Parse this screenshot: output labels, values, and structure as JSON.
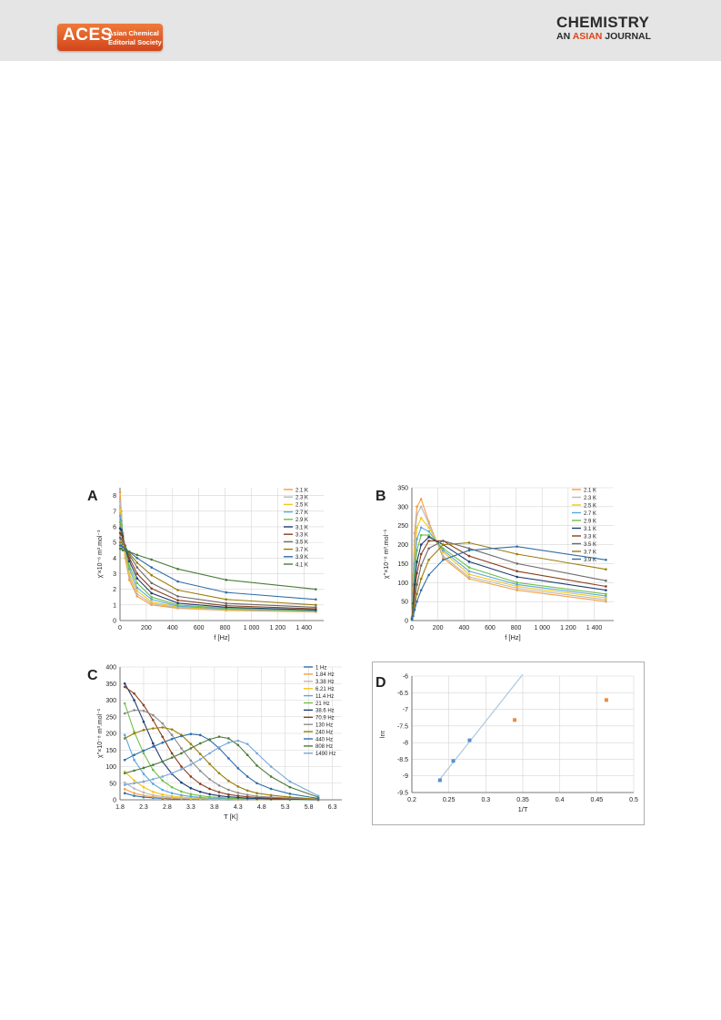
{
  "header": {
    "aces_logo": {
      "word": "ACES",
      "line1": "Asian Chemical",
      "line2": "Editorial Society"
    },
    "journal": {
      "line1": "CHEMISTRY",
      "line2_part1": "AN ",
      "line2_accent": "ASIAN",
      "line2_part2": " JOURNAL"
    },
    "colors": {
      "band": "#e5e5e5",
      "accent": "#d9471b"
    }
  },
  "chart_data": [
    {
      "panel": "A",
      "type": "line",
      "xlabel": "f [Hz]",
      "ylabel": "χ'×10⁻⁶ m³.mol⁻¹",
      "xlim": [
        0,
        1550
      ],
      "ylim": [
        0,
        8.5
      ],
      "xticks": [
        0,
        200,
        400,
        600,
        800,
        1000,
        1200,
        1400
      ],
      "xtick_labels": [
        "0",
        "200",
        "400",
        "600",
        "800",
        "1 000",
        "1 200",
        "1 400"
      ],
      "yticks": [
        0,
        1,
        2,
        3,
        4,
        5,
        6,
        7,
        8
      ],
      "legend": "top-right",
      "x": [
        1,
        10,
        21,
        39,
        71,
        130,
        240,
        440,
        808,
        1490
      ],
      "series": [
        {
          "name": "2.1 K",
          "color": "#f59e42",
          "values": [
            8.2,
            7.0,
            5.5,
            4.0,
            2.6,
            1.55,
            1.0,
            0.78,
            0.65,
            0.55
          ]
        },
        {
          "name": "2.3 K",
          "color": "#b9b9b9",
          "values": [
            7.6,
            6.8,
            5.6,
            4.2,
            2.8,
            1.7,
            1.1,
            0.82,
            0.68,
            0.58
          ]
        },
        {
          "name": "2.5 K",
          "color": "#f5c518",
          "values": [
            7.1,
            6.6,
            5.6,
            4.3,
            3.0,
            1.9,
            1.2,
            0.86,
            0.7,
            0.6
          ]
        },
        {
          "name": "2.7 K",
          "color": "#5aa7e0",
          "values": [
            6.7,
            6.4,
            5.6,
            4.5,
            3.3,
            2.1,
            1.35,
            0.92,
            0.74,
            0.62
          ]
        },
        {
          "name": "2.9 K",
          "color": "#6fbf4a",
          "values": [
            6.3,
            6.1,
            5.5,
            4.6,
            3.5,
            2.4,
            1.5,
            1.0,
            0.78,
            0.64
          ]
        },
        {
          "name": "3.1 K",
          "color": "#1f3b73",
          "values": [
            5.9,
            5.8,
            5.4,
            4.7,
            3.8,
            2.7,
            1.75,
            1.12,
            0.85,
            0.68
          ]
        },
        {
          "name": "3.3 K",
          "color": "#8a3f1d",
          "values": [
            5.6,
            5.5,
            5.3,
            4.8,
            4.0,
            3.0,
            2.05,
            1.3,
            0.95,
            0.75
          ]
        },
        {
          "name": "3.5 K",
          "color": "#6a6a6a",
          "values": [
            5.3,
            5.2,
            5.1,
            4.8,
            4.2,
            3.4,
            2.4,
            1.55,
            1.1,
            0.85
          ]
        },
        {
          "name": "3.7 K",
          "color": "#9a7d0a",
          "values": [
            5.0,
            5.0,
            4.9,
            4.7,
            4.3,
            3.7,
            2.9,
            1.95,
            1.35,
            1.0
          ]
        },
        {
          "name": "3.9 K",
          "color": "#2f6ea8",
          "values": [
            4.8,
            4.8,
            4.7,
            4.6,
            4.4,
            4.0,
            3.4,
            2.5,
            1.8,
            1.35
          ]
        },
        {
          "name": "4.1 K",
          "color": "#4c7a3a",
          "values": [
            4.6,
            4.6,
            4.5,
            4.5,
            4.4,
            4.2,
            3.9,
            3.3,
            2.6,
            2.0
          ]
        }
      ]
    },
    {
      "panel": "B",
      "type": "line",
      "xlabel": "f [Hz]",
      "ylabel": "χ''×10⁻⁸ m³.mol⁻¹",
      "xlim": [
        0,
        1550
      ],
      "ylim": [
        0,
        350
      ],
      "xticks": [
        0,
        200,
        400,
        600,
        800,
        1000,
        1200,
        1400
      ],
      "xtick_labels": [
        "0",
        "200",
        "400",
        "600",
        "800",
        "1 000",
        "1 200",
        "1 400"
      ],
      "yticks": [
        0,
        50,
        100,
        150,
        200,
        250,
        300,
        350
      ],
      "legend": "top-right",
      "x": [
        1,
        10,
        21,
        39,
        71,
        130,
        240,
        440,
        808,
        1490
      ],
      "series": [
        {
          "name": "2.1 K",
          "color": "#f59e42",
          "values": [
            10,
            120,
            230,
            300,
            320,
            260,
            165,
            110,
            80,
            50
          ]
        },
        {
          "name": "2.3 K",
          "color": "#b9b9b9",
          "values": [
            9,
            105,
            210,
            280,
            300,
            255,
            170,
            115,
            85,
            55
          ]
        },
        {
          "name": "2.5 K",
          "color": "#f5c518",
          "values": [
            8,
            85,
            180,
            245,
            270,
            245,
            180,
            122,
            90,
            60
          ]
        },
        {
          "name": "2.7 K",
          "color": "#5aa7e0",
          "values": [
            7,
            70,
            150,
            215,
            245,
            235,
            185,
            130,
            95,
            65
          ]
        },
        {
          "name": "2.9 K",
          "color": "#6fbf4a",
          "values": [
            6,
            55,
            120,
            185,
            225,
            225,
            190,
            140,
            100,
            70
          ]
        },
        {
          "name": "3.1 K",
          "color": "#1f3b73",
          "values": [
            5,
            45,
            95,
            155,
            200,
            220,
            200,
            155,
            115,
            80
          ]
        },
        {
          "name": "3.3 K",
          "color": "#8a3f1d",
          "values": [
            4,
            35,
            75,
            125,
            175,
            210,
            210,
            170,
            130,
            90
          ]
        },
        {
          "name": "3.5 K",
          "color": "#6a6a6a",
          "values": [
            3,
            25,
            55,
            95,
            145,
            190,
            210,
            190,
            150,
            105
          ]
        },
        {
          "name": "3.7 K",
          "color": "#9a7d0a",
          "values": [
            2,
            18,
            40,
            70,
            110,
            160,
            200,
            205,
            175,
            135
          ]
        },
        {
          "name": "3.9 K",
          "color": "#2f6ea8",
          "values": [
            2,
            12,
            28,
            50,
            80,
            120,
            160,
            185,
            195,
            160
          ]
        }
      ]
    },
    {
      "panel": "C",
      "type": "line",
      "xlabel": "T [K]",
      "ylabel": "χ''×10⁻⁸ m³.mol⁻¹",
      "xlim": [
        1.8,
        6.5
      ],
      "ylim": [
        0,
        400
      ],
      "xticks": [
        1.8,
        2.3,
        2.8,
        3.3,
        3.8,
        4.3,
        4.8,
        5.3,
        5.8,
        6.3
      ],
      "xtick_labels": [
        "1.8",
        "2.3",
        "2.8",
        "3.3",
        "3.8",
        "4.3",
        "4.8",
        "5.3",
        "5.8",
        "6.3"
      ],
      "yticks": [
        0,
        50,
        100,
        150,
        200,
        250,
        300,
        350,
        400
      ],
      "legend": "top-right",
      "x": [
        1.9,
        2.1,
        2.3,
        2.5,
        2.7,
        2.9,
        3.1,
        3.3,
        3.5,
        3.7,
        3.9,
        4.1,
        4.3,
        4.5,
        4.7,
        5.0,
        5.4,
        6.0
      ],
      "series": [
        {
          "name": "1 Hz",
          "color": "#2f6ea8",
          "values": [
            20,
            12,
            8,
            6,
            4,
            3,
            3,
            2,
            2,
            2,
            2,
            1,
            1,
            1,
            1,
            1,
            1,
            0
          ]
        },
        {
          "name": "1.84 Hz",
          "color": "#f59e42",
          "values": [
            32,
            20,
            13,
            9,
            6,
            5,
            4,
            3,
            3,
            2,
            2,
            2,
            1,
            1,
            1,
            1,
            1,
            0
          ]
        },
        {
          "name": "3.38 Hz",
          "color": "#b9b9b9",
          "values": [
            52,
            34,
            22,
            14,
            10,
            7,
            5,
            4,
            3,
            3,
            2,
            2,
            2,
            1,
            1,
            1,
            1,
            0
          ]
        },
        {
          "name": "6.21 Hz",
          "color": "#f5c518",
          "values": [
            85,
            58,
            38,
            24,
            16,
            11,
            8,
            6,
            5,
            4,
            3,
            3,
            2,
            2,
            1,
            1,
            1,
            0
          ]
        },
        {
          "name": "11.4 Hz",
          "color": "#5aa7e0",
          "values": [
            195,
            120,
            78,
            48,
            30,
            20,
            14,
            10,
            7,
            5,
            4,
            3,
            3,
            2,
            2,
            1,
            1,
            0
          ]
        },
        {
          "name": "21 Hz",
          "color": "#6fbf4a",
          "values": [
            290,
            205,
            140,
            90,
            58,
            38,
            25,
            17,
            12,
            9,
            7,
            5,
            4,
            3,
            2,
            2,
            1,
            0
          ]
        },
        {
          "name": "38.6 Hz",
          "color": "#1f3b73",
          "values": [
            350,
            300,
            235,
            170,
            115,
            78,
            52,
            35,
            24,
            17,
            12,
            9,
            7,
            5,
            4,
            3,
            2,
            0
          ]
        },
        {
          "name": "70.9 Hz",
          "color": "#8a3f1d",
          "values": [
            340,
            320,
            285,
            240,
            190,
            140,
            100,
            70,
            48,
            33,
            23,
            16,
            12,
            9,
            7,
            5,
            3,
            1
          ]
        },
        {
          "name": "130 Hz",
          "color": "#8c8c8c",
          "values": [
            260,
            270,
            268,
            255,
            230,
            195,
            155,
            118,
            87,
            62,
            43,
            30,
            21,
            15,
            11,
            8,
            5,
            1
          ]
        },
        {
          "name": "240 Hz",
          "color": "#9a7d0a",
          "values": [
            185,
            200,
            210,
            215,
            218,
            212,
            195,
            168,
            138,
            108,
            80,
            57,
            40,
            28,
            20,
            14,
            8,
            2
          ]
        },
        {
          "name": "440 Hz",
          "color": "#2f6ea8",
          "values": [
            120,
            135,
            148,
            160,
            172,
            183,
            192,
            198,
            195,
            180,
            155,
            125,
            95,
            70,
            50,
            33,
            18,
            4
          ]
        },
        {
          "name": "808 Hz",
          "color": "#4c7a3a",
          "values": [
            80,
            88,
            96,
            105,
            115,
            127,
            140,
            155,
            170,
            182,
            190,
            185,
            165,
            135,
            103,
            70,
            38,
            8
          ]
        },
        {
          "name": "1490 Hz",
          "color": "#7aa6d6",
          "values": [
            45,
            50,
            55,
            62,
            70,
            80,
            92,
            106,
            122,
            140,
            158,
            172,
            178,
            168,
            140,
            100,
            55,
            12
          ]
        }
      ]
    },
    {
      "panel": "D",
      "type": "scatter",
      "xlabel": "1/T",
      "ylabel": "lnτ",
      "xlim": [
        0.2,
        0.5
      ],
      "ylim": [
        -9.5,
        -6
      ],
      "xticks": [
        0.2,
        0.25,
        0.3,
        0.35,
        0.4,
        0.45,
        0.5
      ],
      "xtick_labels": [
        "0.2",
        "0.25",
        "0.3",
        "0.35",
        "0.4",
        "0.45",
        "0.5"
      ],
      "yticks": [
        -9.5,
        -9,
        -8.5,
        -8,
        -7.5,
        -7,
        -6.5,
        -6
      ],
      "ytick_labels": [
        "-9.5",
        "-9",
        "-8.5",
        "-8",
        "-7.5",
        "-7",
        "-6.5",
        "-6"
      ],
      "series": [
        {
          "color": "#5a8fd0",
          "points": [
            [
              0.238,
              -9.13
            ],
            [
              0.256,
              -8.55
            ],
            [
              0.278,
              -7.93
            ]
          ]
        },
        {
          "color": "#f08a3c",
          "points": [
            [
              0.339,
              -7.32
            ],
            [
              0.463,
              -6.72
            ]
          ]
        }
      ],
      "fit_line": {
        "color": "#a9c7e3",
        "points": [
          [
            0.235,
            -9.18
          ],
          [
            0.35,
            -5.95
          ]
        ]
      }
    }
  ]
}
